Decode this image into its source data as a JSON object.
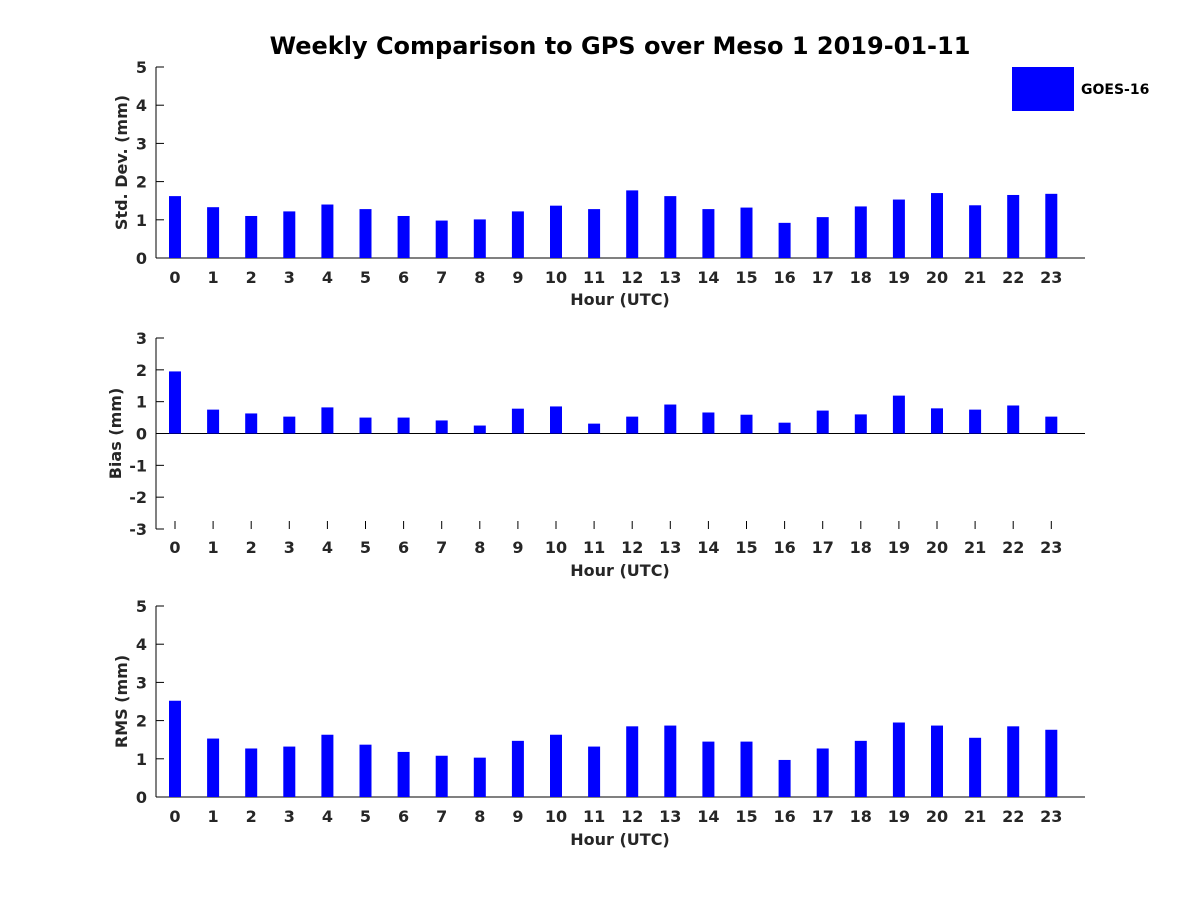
{
  "title": "Weekly Comparison to GPS over Meso 1 2019-01-11",
  "legend": {
    "label": "GOES-16",
    "color": "#0000ff",
    "placement": "top-right"
  },
  "chart_data": [
    {
      "type": "bar",
      "xlabel": "Hour (UTC)",
      "ylabel": "Std. Dev. (mm)",
      "ylim": [
        0,
        5
      ],
      "yticks": [
        "0",
        "1",
        "2",
        "3",
        "4",
        "5"
      ],
      "categories": [
        "0",
        "1",
        "2",
        "3",
        "4",
        "5",
        "6",
        "7",
        "8",
        "9",
        "10",
        "11",
        "12",
        "13",
        "14",
        "15",
        "16",
        "17",
        "18",
        "19",
        "20",
        "21",
        "22",
        "23"
      ],
      "series": [
        {
          "name": "GOES-16",
          "color": "#0000ff",
          "values": [
            1.62,
            1.33,
            1.1,
            1.22,
            1.4,
            1.28,
            1.1,
            0.98,
            1.01,
            1.22,
            1.37,
            1.28,
            1.77,
            1.62,
            1.28,
            1.32,
            0.92,
            1.07,
            1.35,
            1.53,
            1.7,
            1.38,
            1.65,
            1.68
          ]
        }
      ]
    },
    {
      "type": "bar",
      "xlabel": "Hour (UTC)",
      "ylabel": "Bias (mm)",
      "ylim": [
        -3,
        3
      ],
      "yticks": [
        "-3",
        "-2",
        "-1",
        "0",
        "1",
        "2",
        "3"
      ],
      "categories": [
        "0",
        "1",
        "2",
        "3",
        "4",
        "5",
        "6",
        "7",
        "8",
        "9",
        "10",
        "11",
        "12",
        "13",
        "14",
        "15",
        "16",
        "17",
        "18",
        "19",
        "20",
        "21",
        "22",
        "23"
      ],
      "series": [
        {
          "name": "GOES-16",
          "color": "#0000ff",
          "values": [
            1.95,
            0.75,
            0.63,
            0.53,
            0.82,
            0.5,
            0.5,
            0.41,
            0.25,
            0.78,
            0.85,
            0.31,
            0.53,
            0.91,
            0.66,
            0.59,
            0.34,
            0.72,
            0.6,
            1.19,
            0.79,
            0.75,
            0.88,
            0.53
          ]
        }
      ]
    },
    {
      "type": "bar",
      "xlabel": "Hour (UTC)",
      "ylabel": "RMS (mm)",
      "ylim": [
        0,
        5
      ],
      "yticks": [
        "0",
        "1",
        "2",
        "3",
        "4",
        "5"
      ],
      "categories": [
        "0",
        "1",
        "2",
        "3",
        "4",
        "5",
        "6",
        "7",
        "8",
        "9",
        "10",
        "11",
        "12",
        "13",
        "14",
        "15",
        "16",
        "17",
        "18",
        "19",
        "20",
        "21",
        "22",
        "23"
      ],
      "series": [
        {
          "name": "GOES-16",
          "color": "#0000ff",
          "values": [
            2.52,
            1.53,
            1.27,
            1.32,
            1.63,
            1.37,
            1.18,
            1.08,
            1.03,
            1.47,
            1.63,
            1.32,
            1.85,
            1.87,
            1.45,
            1.45,
            0.97,
            1.27,
            1.47,
            1.95,
            1.87,
            1.55,
            1.85,
            1.76
          ]
        }
      ]
    }
  ]
}
